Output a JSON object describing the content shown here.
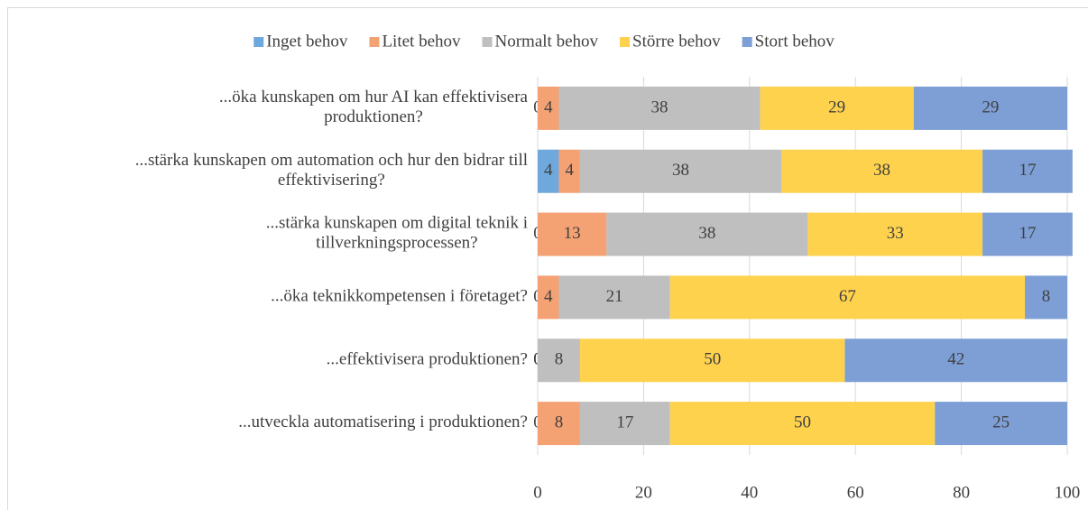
{
  "chart_data": {
    "type": "stacked-bar-horizontal",
    "categories": [
      "...öka kunskapen om hur AI  kan effektivisera\nproduktionen?",
      "...stärka kunskapen om automation  och hur den bidrar till\neffektivisering?",
      "...stärka kunskapen om digital teknik  i\ntillverkningsprocessen?",
      "...öka teknikkompetensen i  företaget?",
      "...effektivisera produktionen?",
      "...utveckla automatisering i produktionen?"
    ],
    "series": [
      {
        "name": "Inget behov",
        "color": "#6fa8dc",
        "values": [
          0,
          4,
          0,
          0,
          0,
          0
        ]
      },
      {
        "name": "Litet behov",
        "color": "#f4a274",
        "values": [
          4,
          4,
          13,
          4,
          0,
          8
        ]
      },
      {
        "name": "Normalt behov",
        "color": "#bfbfbf",
        "values": [
          38,
          38,
          38,
          21,
          8,
          17
        ]
      },
      {
        "name": "Större behov",
        "color": "#ffd24d",
        "values": [
          29,
          38,
          33,
          67,
          50,
          50
        ]
      },
      {
        "name": "Stort behov",
        "color": "#7d9fd6",
        "values": [
          29,
          17,
          17,
          8,
          42,
          25
        ]
      }
    ],
    "xlim": [
      0,
      100
    ],
    "xticks": [
      0,
      20,
      40,
      60,
      80,
      100
    ],
    "grid": true,
    "legend": "top"
  }
}
